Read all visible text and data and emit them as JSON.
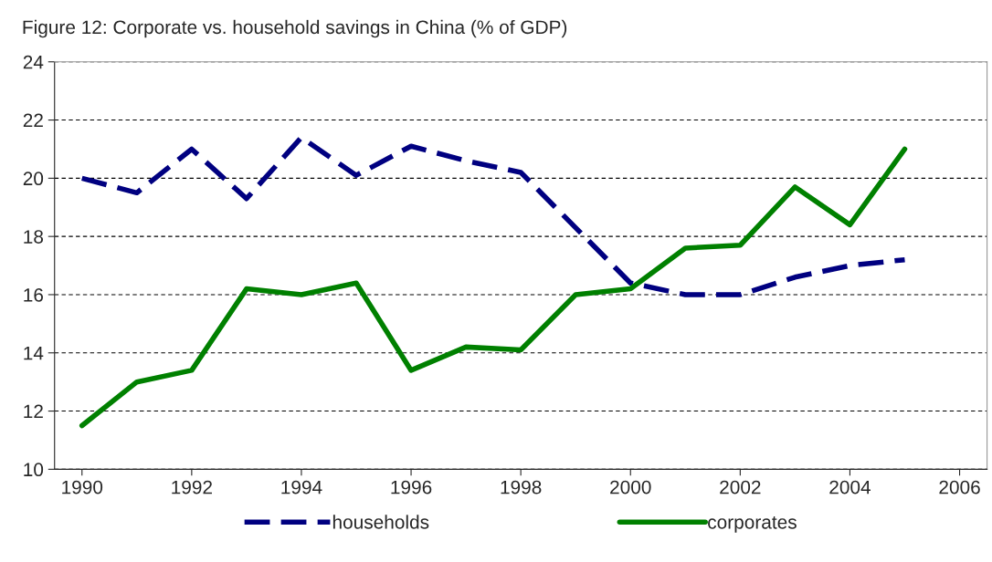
{
  "chart_data": {
    "type": "line",
    "title": "Figure 12: Corporate vs. household savings in China (% of GDP)",
    "x": [
      1990,
      1991,
      1992,
      1993,
      1994,
      1995,
      1996,
      1997,
      1998,
      1999,
      2000,
      2001,
      2002,
      2003,
      2004,
      2005
    ],
    "series": [
      {
        "name": "households",
        "color": "#000080",
        "line_style": "dashed",
        "values": [
          20.0,
          19.5,
          21.0,
          19.3,
          21.4,
          20.1,
          21.1,
          20.6,
          20.2,
          18.3,
          16.4,
          16.0,
          16.0,
          16.6,
          17.0,
          17.2
        ]
      },
      {
        "name": "corporates",
        "color": "#008000",
        "line_style": "solid",
        "values": [
          11.5,
          13.0,
          13.4,
          16.2,
          16.0,
          16.4,
          13.4,
          14.2,
          14.1,
          16.0,
          16.2,
          17.6,
          17.7,
          19.7,
          18.4,
          21.0
        ]
      }
    ],
    "xlim": [
      1989.5,
      2006.5
    ],
    "xticks": [
      1990,
      1992,
      1994,
      1996,
      1998,
      2000,
      2002,
      2004,
      2006
    ],
    "ylim": [
      10,
      24
    ],
    "yticks": [
      10,
      12,
      14,
      16,
      18,
      20,
      22,
      24
    ],
    "grid": "y",
    "legend": "bottom"
  }
}
